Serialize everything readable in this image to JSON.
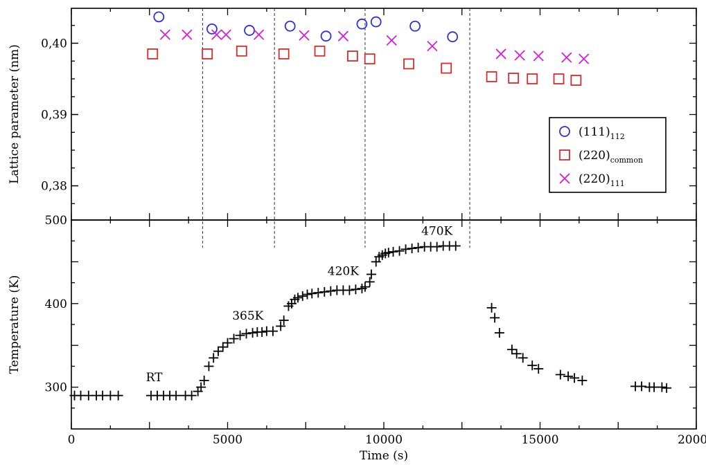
{
  "chart_data": [
    {
      "type": "scatter",
      "ylabel": "Lattice parameter (nm)",
      "xlim": [
        0,
        20000
      ],
      "ylim": [
        0.3752,
        0.4049
      ],
      "yticks": [
        "0,38",
        "0,39",
        "0,40"
      ],
      "ytick_values": [
        0.38,
        0.39,
        0.4
      ],
      "legend_position": "right",
      "series": [
        {
          "name_main": "(111)",
          "name_sub": "112",
          "marker": "circle",
          "color": "#2a32d8",
          "points": [
            [
              2800,
              0.4037
            ],
            [
              4500,
              0.402
            ],
            [
              5700,
              0.4018
            ],
            [
              7000,
              0.4024
            ],
            [
              8150,
              0.401
            ],
            [
              9300,
              0.4027
            ],
            [
              9750,
              0.403
            ],
            [
              11000,
              0.4024
            ],
            [
              12200,
              0.4009
            ]
          ]
        },
        {
          "name_main": "(220)",
          "name_sub": "common",
          "marker": "square",
          "color": "#d92b2b",
          "points": [
            [
              2600,
              0.3985
            ],
            [
              4350,
              0.3985
            ],
            [
              5450,
              0.3989
            ],
            [
              6800,
              0.3985
            ],
            [
              7950,
              0.3989
            ],
            [
              9000,
              0.3982
            ],
            [
              9550,
              0.3978
            ],
            [
              10800,
              0.3971
            ],
            [
              12000,
              0.3965
            ],
            [
              13450,
              0.3953
            ],
            [
              14150,
              0.3951
            ],
            [
              14750,
              0.395
            ],
            [
              15600,
              0.395
            ],
            [
              16150,
              0.3948
            ]
          ]
        },
        {
          "name_main": "(220)",
          "name_sub": "111",
          "marker": "x",
          "color": "#d520d5",
          "points": [
            [
              3000,
              0.4012
            ],
            [
              3700,
              0.4012
            ],
            [
              4650,
              0.4012
            ],
            [
              4950,
              0.4012
            ],
            [
              6000,
              0.4012
            ],
            [
              7450,
              0.4011
            ],
            [
              8700,
              0.401
            ],
            [
              10250,
              0.4004
            ],
            [
              11550,
              0.3996
            ],
            [
              13750,
              0.3985
            ],
            [
              14350,
              0.3983
            ],
            [
              14950,
              0.3982
            ],
            [
              15850,
              0.398
            ],
            [
              16400,
              0.3978
            ]
          ]
        }
      ]
    },
    {
      "type": "scatter",
      "xlabel": "Time (s)",
      "ylabel": "Temperature (K)",
      "xlim": [
        0,
        20000
      ],
      "ylim": [
        250,
        500
      ],
      "xticks": [
        0,
        5000,
        10000,
        15000,
        20000
      ],
      "yticks": [
        300,
        400,
        500
      ],
      "series": [
        {
          "marker": "plus",
          "color": "#000000",
          "points": [
            [
              100,
              290
            ],
            [
              300,
              290
            ],
            [
              550,
              290
            ],
            [
              800,
              290
            ],
            [
              1000,
              290
            ],
            [
              1250,
              290
            ],
            [
              1500,
              290
            ],
            [
              2550,
              290
            ],
            [
              2750,
              290
            ],
            [
              2950,
              290
            ],
            [
              3150,
              290
            ],
            [
              3350,
              290
            ],
            [
              3650,
              290
            ],
            [
              3850,
              290
            ],
            [
              4050,
              295
            ],
            [
              4150,
              300
            ],
            [
              4250,
              308
            ],
            [
              4400,
              325
            ],
            [
              4550,
              335
            ],
            [
              4700,
              343
            ],
            [
              4850,
              348
            ],
            [
              5000,
              353
            ],
            [
              5200,
              358
            ],
            [
              5400,
              362
            ],
            [
              5600,
              364
            ],
            [
              5800,
              365
            ],
            [
              5950,
              366
            ],
            [
              6100,
              366
            ],
            [
              6250,
              367
            ],
            [
              6450,
              367
            ],
            [
              6700,
              373
            ],
            [
              6800,
              380
            ],
            [
              6950,
              397
            ],
            [
              7050,
              400
            ],
            [
              7150,
              405
            ],
            [
              7250,
              407
            ],
            [
              7400,
              409
            ],
            [
              7550,
              411
            ],
            [
              7700,
              412
            ],
            [
              7900,
              413
            ],
            [
              8100,
              414
            ],
            [
              8300,
              415
            ],
            [
              8500,
              416
            ],
            [
              8700,
              416
            ],
            [
              8900,
              416
            ],
            [
              9100,
              417
            ],
            [
              9300,
              418
            ],
            [
              9400,
              420
            ],
            [
              9550,
              426
            ],
            [
              9600,
              435
            ],
            [
              9750,
              450
            ],
            [
              9850,
              456
            ],
            [
              9950,
              458
            ],
            [
              10050,
              460
            ],
            [
              10150,
              461
            ],
            [
              10300,
              462
            ],
            [
              10500,
              463
            ],
            [
              10700,
              465
            ],
            [
              10900,
              466
            ],
            [
              11100,
              467
            ],
            [
              11300,
              468
            ],
            [
              11500,
              468
            ],
            [
              11700,
              468
            ],
            [
              11900,
              469
            ],
            [
              12100,
              469
            ],
            [
              12300,
              469
            ],
            [
              13450,
              395
            ],
            [
              13550,
              383
            ],
            [
              13700,
              365
            ],
            [
              14100,
              345
            ],
            [
              14250,
              340
            ],
            [
              14450,
              335
            ],
            [
              14750,
              326
            ],
            [
              14950,
              322
            ],
            [
              15650,
              315
            ],
            [
              15900,
              313
            ],
            [
              16100,
              311
            ],
            [
              16350,
              308
            ],
            [
              18050,
              301
            ],
            [
              18250,
              301
            ],
            [
              18500,
              300
            ],
            [
              18650,
              300
            ],
            [
              18900,
              300
            ],
            [
              19050,
              299
            ]
          ]
        }
      ],
      "annotations": [
        {
          "text": "RT",
          "x": 2650,
          "y": 307
        },
        {
          "text": "365K",
          "x": 5650,
          "y": 381
        },
        {
          "text": "420K",
          "x": 8700,
          "y": 434
        },
        {
          "text": "470K",
          "x": 11700,
          "y": 482
        }
      ],
      "vlines": [
        4200,
        6500,
        9400,
        12750
      ]
    }
  ]
}
